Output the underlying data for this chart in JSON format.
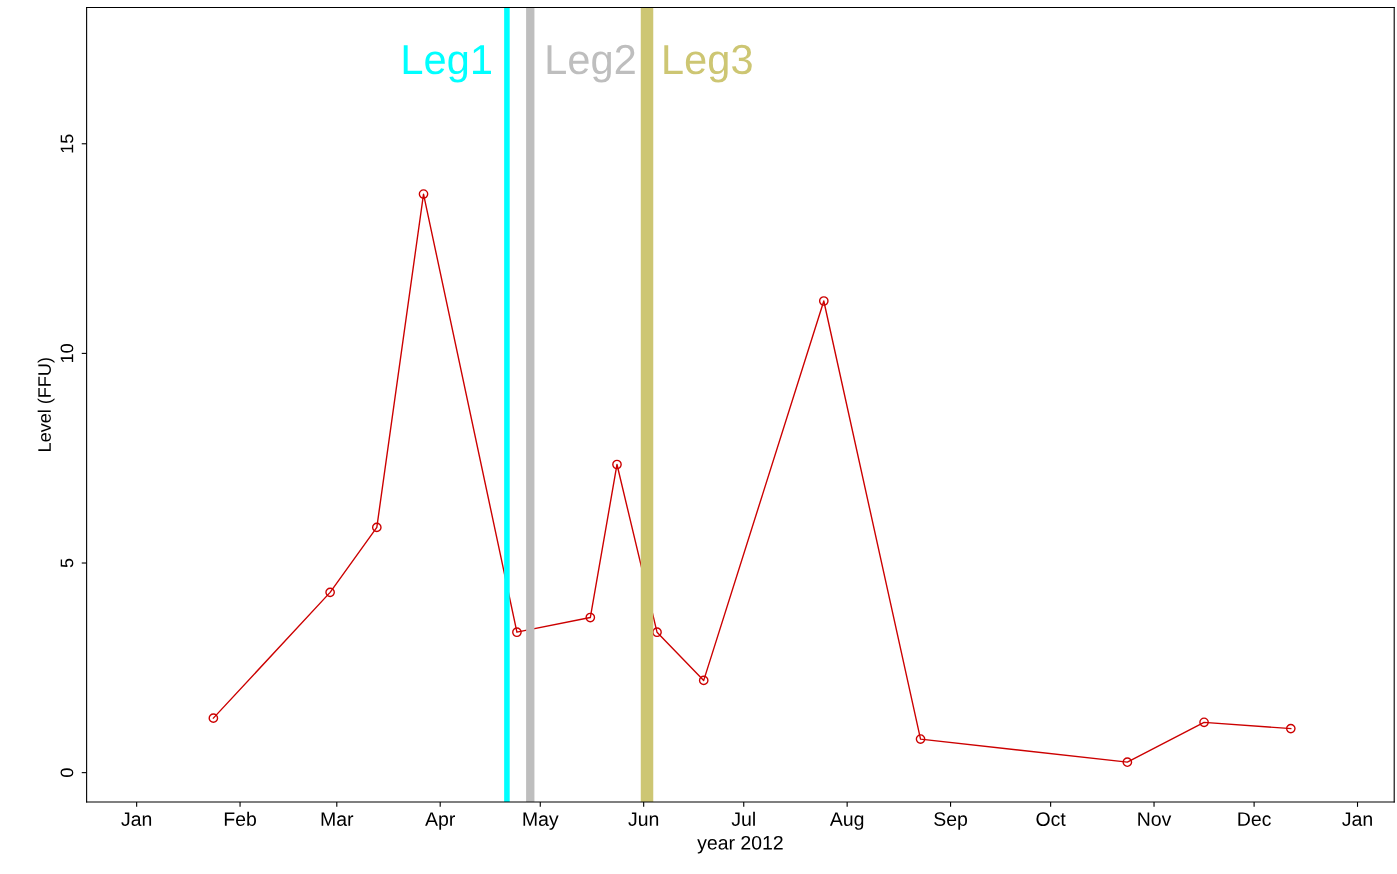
{
  "chart_data": {
    "type": "line",
    "xlabel": "year 2012",
    "ylabel": "Level (FFU)",
    "x": [
      "2012-01-24",
      "2012-02-28",
      "2012-03-13",
      "2012-03-27",
      "2012-04-24",
      "2012-05-16",
      "2012-05-24",
      "2012-06-05",
      "2012-06-19",
      "2012-07-25",
      "2012-08-23",
      "2012-10-24",
      "2012-11-16",
      "2012-12-12"
    ],
    "series": [
      {
        "color": "#cc0000",
        "values": [
          1.3,
          4.3,
          5.85,
          13.8,
          3.35,
          3.7,
          7.35,
          3.35,
          2.2,
          11.25,
          0.8,
          0.25,
          1.2,
          1.05
        ]
      }
    ],
    "marker": "circle",
    "line_style": "solid",
    "grid": false,
    "legend": false,
    "xlim": [
      "2011-12-17",
      "2013-01-12"
    ],
    "xticks": [
      {
        "value": "2012-01-01",
        "label": "Jan"
      },
      {
        "value": "2012-02-01",
        "label": "Feb"
      },
      {
        "value": "2012-03-01",
        "label": "Mar"
      },
      {
        "value": "2012-04-01",
        "label": "Apr"
      },
      {
        "value": "2012-05-01",
        "label": "May"
      },
      {
        "value": "2012-06-01",
        "label": "Jun"
      },
      {
        "value": "2012-07-01",
        "label": "Jul"
      },
      {
        "value": "2012-08-01",
        "label": "Aug"
      },
      {
        "value": "2012-09-01",
        "label": "Sep"
      },
      {
        "value": "2012-10-01",
        "label": "Oct"
      },
      {
        "value": "2012-11-01",
        "label": "Nov"
      },
      {
        "value": "2012-12-01",
        "label": "Dec"
      },
      {
        "value": "2013-01-01",
        "label": "Jan"
      }
    ],
    "ylim": [
      -0.7,
      18.25
    ],
    "yticks": [
      0,
      5,
      10,
      15
    ],
    "ref_lines": [
      {
        "axis": "x",
        "value": "2012-04-21",
        "label": "Leg1",
        "color": "#00ffff",
        "line_style": "solid"
      },
      {
        "axis": "x",
        "value": "2012-04-28",
        "label": "Leg2",
        "color": "#bebebe",
        "line_style": "solid"
      },
      {
        "axis": "x",
        "value": "2012-06-02",
        "label": "Leg3",
        "color": "#cdc673",
        "line_style": "solid"
      }
    ]
  }
}
